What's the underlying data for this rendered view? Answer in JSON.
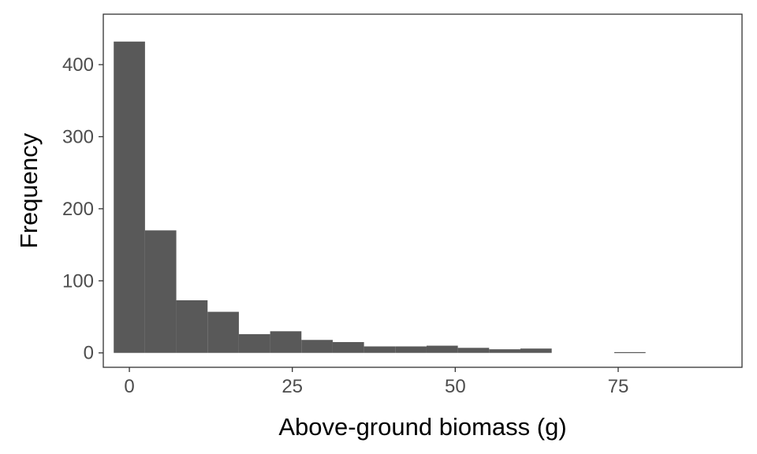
{
  "chart_data": {
    "type": "bar",
    "title": "",
    "xlabel": "Above-ground biomass (g)",
    "ylabel": "Frequency",
    "xlim": [
      -4,
      94
    ],
    "ylim": [
      -20,
      470
    ],
    "xticks": [
      0,
      25,
      50,
      75
    ],
    "yticks": [
      0,
      100,
      200,
      300,
      400
    ],
    "grid": false,
    "bin_width": 4.8,
    "bins": [
      {
        "x0": -2.4,
        "x1": 2.4,
        "count": 432
      },
      {
        "x0": 2.4,
        "x1": 7.2,
        "count": 170
      },
      {
        "x0": 7.2,
        "x1": 12.0,
        "count": 73
      },
      {
        "x0": 12.0,
        "x1": 16.8,
        "count": 57
      },
      {
        "x0": 16.8,
        "x1": 21.6,
        "count": 26
      },
      {
        "x0": 21.6,
        "x1": 26.4,
        "count": 30
      },
      {
        "x0": 26.4,
        "x1": 31.2,
        "count": 18
      },
      {
        "x0": 31.2,
        "x1": 36.0,
        "count": 15
      },
      {
        "x0": 36.0,
        "x1": 40.8,
        "count": 9
      },
      {
        "x0": 40.8,
        "x1": 45.6,
        "count": 9
      },
      {
        "x0": 45.6,
        "x1": 50.4,
        "count": 10
      },
      {
        "x0": 50.4,
        "x1": 55.2,
        "count": 7
      },
      {
        "x0": 55.2,
        "x1": 60.0,
        "count": 5
      },
      {
        "x0": 60.0,
        "x1": 64.8,
        "count": 6
      },
      {
        "x0": 64.8,
        "x1": 69.6,
        "count": 0
      },
      {
        "x0": 69.6,
        "x1": 74.4,
        "count": 0
      },
      {
        "x0": 74.4,
        "x1": 79.2,
        "count": 1
      }
    ],
    "bar_color": "#595959"
  }
}
